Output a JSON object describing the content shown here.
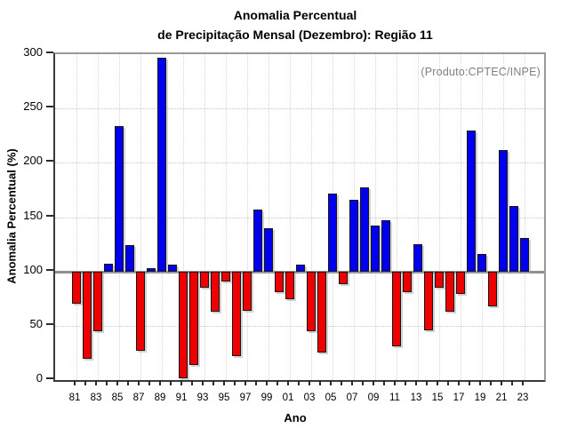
{
  "title": {
    "line1": "Anomalia Percentual",
    "line2": "de Precipitação Mensal (Dezembro): Região 11"
  },
  "annotation": "(Produto:CPTEC/INPE)",
  "chart_data": {
    "type": "bar",
    "title": "Anomalia Percentual de Precipitação Mensal (Dezembro): Região 11",
    "xlabel": "Ano",
    "ylabel": "Anomalia Percentual (%)",
    "ylim": [
      0,
      300
    ],
    "yticks": [
      0,
      50,
      100,
      150,
      200,
      250,
      300
    ],
    "baseline": 100,
    "grid": true,
    "categories": [
      "81",
      "82",
      "83",
      "84",
      "85",
      "86",
      "87",
      "88",
      "89",
      "90",
      "91",
      "92",
      "93",
      "94",
      "95",
      "96",
      "97",
      "98",
      "99",
      "00",
      "01",
      "02",
      "03",
      "04",
      "05",
      "06",
      "07",
      "08",
      "09",
      "10",
      "11",
      "12",
      "13",
      "14",
      "15",
      "16",
      "17",
      "18",
      "19",
      "20",
      "21",
      "22",
      "23"
    ],
    "xtick_labels": [
      "81",
      "83",
      "85",
      "87",
      "89",
      "91",
      "93",
      "95",
      "97",
      "99",
      "01",
      "03",
      "05",
      "07",
      "09",
      "11",
      "13",
      "15",
      "17",
      "19",
      "21",
      "23"
    ],
    "values": [
      70,
      20,
      45,
      107,
      234,
      124,
      27,
      103,
      297,
      106,
      2,
      14,
      85,
      63,
      91,
      22,
      64,
      157,
      140,
      81,
      74,
      106,
      45,
      25,
      172,
      88,
      166,
      177,
      142,
      147,
      31,
      81,
      125,
      46,
      85,
      63,
      79,
      230,
      116,
      68,
      212,
      160,
      131
    ],
    "colors": {
      "above_baseline": "#0000ee",
      "below_baseline": "#ee0000",
      "baseline_line": "#8f8f8f",
      "annotation_text": "#808080"
    },
    "legend": null
  }
}
